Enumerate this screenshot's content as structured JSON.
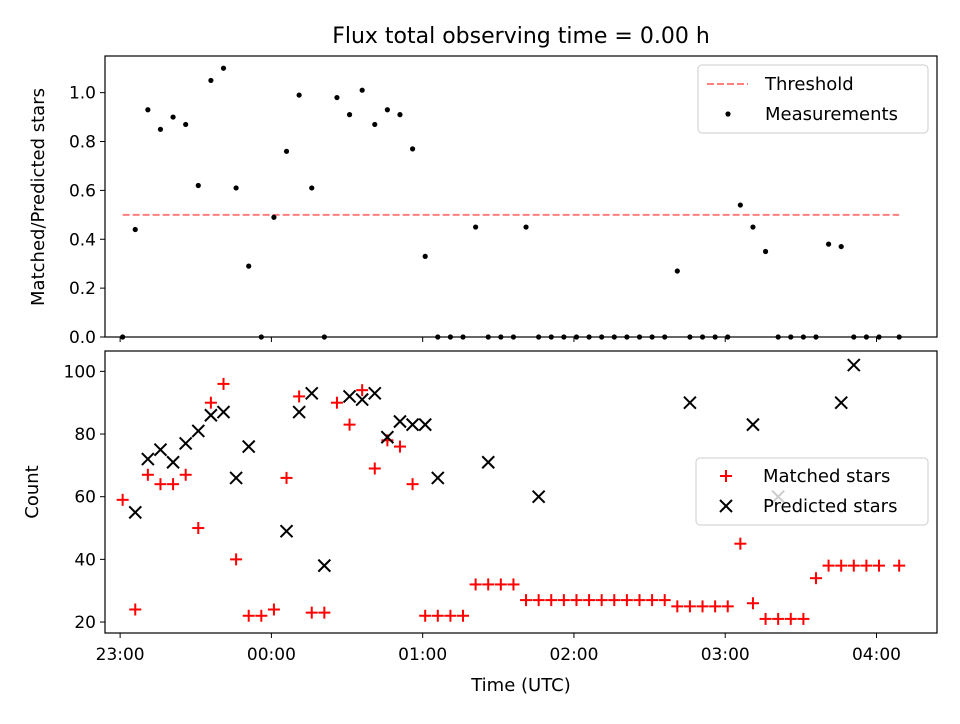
{
  "figure": {
    "title": "Flux total observing time = 0.00 h",
    "xlabel": "Time (UTC)",
    "x_ticks": [
      "23:00",
      "00:00",
      "01:00",
      "02:00",
      "03:00",
      "04:00"
    ]
  },
  "chart_data": [
    {
      "type": "scatter",
      "panel": "top",
      "ylabel": "Matched/Predicted stars",
      "ylim": [
        0,
        1.15
      ],
      "xlim": [
        "22:54",
        "04:24"
      ],
      "y_ticks": [
        "0.0",
        "0.2",
        "0.4",
        "0.6",
        "0.8",
        "1.0"
      ],
      "legend_position": "top-right",
      "series": [
        {
          "name": "Threshold",
          "style": "dashed-line",
          "color": "#ff7f7f",
          "x": [
            "23:01",
            "04:09"
          ],
          "y": [
            0.5,
            0.5
          ]
        },
        {
          "name": "Measurements",
          "style": "dot",
          "color": "#000000",
          "x": [
            "23:01",
            "23:06",
            "23:11",
            "23:16",
            "23:21",
            "23:26",
            "23:31",
            "23:36",
            "23:41",
            "23:46",
            "23:51",
            "23:56",
            "00:01",
            "00:06",
            "00:11",
            "00:16",
            "00:21",
            "00:26",
            "00:31",
            "00:36",
            "00:41",
            "00:46",
            "00:51",
            "00:56",
            "01:01",
            "01:06",
            "01:11",
            "01:16",
            "01:21",
            "01:26",
            "01:31",
            "01:36",
            "01:41",
            "01:46",
            "01:51",
            "01:56",
            "02:01",
            "02:06",
            "02:11",
            "02:16",
            "02:21",
            "02:26",
            "02:31",
            "02:36",
            "02:41",
            "02:46",
            "02:51",
            "02:56",
            "03:01",
            "03:06",
            "03:11",
            "03:16",
            "03:21",
            "03:26",
            "03:31",
            "03:36",
            "03:41",
            "03:46",
            "03:51",
            "03:56",
            "04:01",
            "04:09"
          ],
          "y": [
            0.0,
            0.44,
            0.93,
            0.85,
            0.9,
            0.87,
            0.62,
            1.05,
            1.1,
            0.61,
            0.29,
            0.0,
            0.49,
            0.76,
            0.99,
            0.61,
            0.0,
            0.98,
            0.91,
            1.01,
            0.87,
            0.93,
            0.91,
            0.77,
            0.33,
            0.0,
            0.0,
            0.0,
            0.45,
            0.0,
            0.0,
            0.0,
            0.45,
            0.0,
            0.0,
            0.0,
            0.0,
            0.0,
            0.0,
            0.0,
            0.0,
            0.0,
            0.0,
            0.0,
            0.27,
            0.0,
            0.0,
            0.0,
            0.0,
            0.54,
            0.45,
            0.35,
            0.0,
            0.0,
            0.0,
            0.0,
            0.38,
            0.37,
            0.0,
            0.0,
            0.0,
            0.0
          ]
        }
      ]
    },
    {
      "type": "scatter",
      "panel": "bottom",
      "ylabel": "Count",
      "ylim": [
        16.5,
        106.5
      ],
      "xlim": [
        "22:54",
        "04:24"
      ],
      "y_ticks": [
        "20",
        "40",
        "60",
        "80",
        "100"
      ],
      "legend_position": "center-right",
      "series": [
        {
          "name": "Matched stars",
          "style": "plus",
          "color": "#ff0000",
          "x": [
            "23:01",
            "23:06",
            "23:11",
            "23:16",
            "23:21",
            "23:26",
            "23:31",
            "23:36",
            "23:41",
            "23:46",
            "23:51",
            "23:56",
            "00:01",
            "00:06",
            "00:11",
            "00:16",
            "00:21",
            "00:26",
            "00:31",
            "00:36",
            "00:41",
            "00:46",
            "00:51",
            "00:56",
            "01:01",
            "01:06",
            "01:11",
            "01:16",
            "01:21",
            "01:26",
            "01:31",
            "01:36",
            "01:41",
            "01:46",
            "01:51",
            "01:56",
            "02:01",
            "02:06",
            "02:11",
            "02:16",
            "02:21",
            "02:26",
            "02:31",
            "02:36",
            "02:41",
            "02:46",
            "02:51",
            "02:56",
            "03:01",
            "03:06",
            "03:11",
            "03:16",
            "03:21",
            "03:26",
            "03:31",
            "03:36",
            "03:41",
            "03:46",
            "03:51",
            "03:56",
            "04:01",
            "04:09"
          ],
          "y": [
            59,
            24,
            67,
            64,
            64,
            67,
            50,
            90,
            96,
            40,
            22,
            22,
            24,
            66,
            92,
            23,
            23,
            90,
            83,
            94,
            69,
            78,
            76,
            64,
            22,
            22,
            22,
            22,
            32,
            32,
            32,
            32,
            27,
            27,
            27,
            27,
            27,
            27,
            27,
            27,
            27,
            27,
            27,
            27,
            25,
            25,
            25,
            25,
            25,
            45,
            26,
            21,
            21,
            21,
            21,
            34,
            38,
            38,
            38,
            38,
            38,
            38
          ]
        },
        {
          "name": "Predicted stars",
          "style": "x",
          "color": "#000000",
          "x": [
            "23:06",
            "23:11",
            "23:16",
            "23:21",
            "23:26",
            "23:31",
            "23:36",
            "23:41",
            "23:46",
            "23:51",
            "00:06",
            "00:11",
            "00:16",
            "00:21",
            "00:31",
            "00:36",
            "00:41",
            "00:46",
            "00:51",
            "00:56",
            "01:01",
            "01:06",
            "01:26",
            "01:46",
            "02:46",
            "03:11",
            "03:21",
            "03:46",
            "03:51"
          ],
          "y": [
            55,
            72,
            75,
            71,
            77,
            81,
            86,
            87,
            66,
            76,
            49,
            87,
            93,
            38,
            92,
            91,
            93,
            79,
            84,
            83,
            83,
            66,
            71,
            60,
            90,
            83,
            60,
            90,
            102
          ]
        }
      ]
    }
  ]
}
